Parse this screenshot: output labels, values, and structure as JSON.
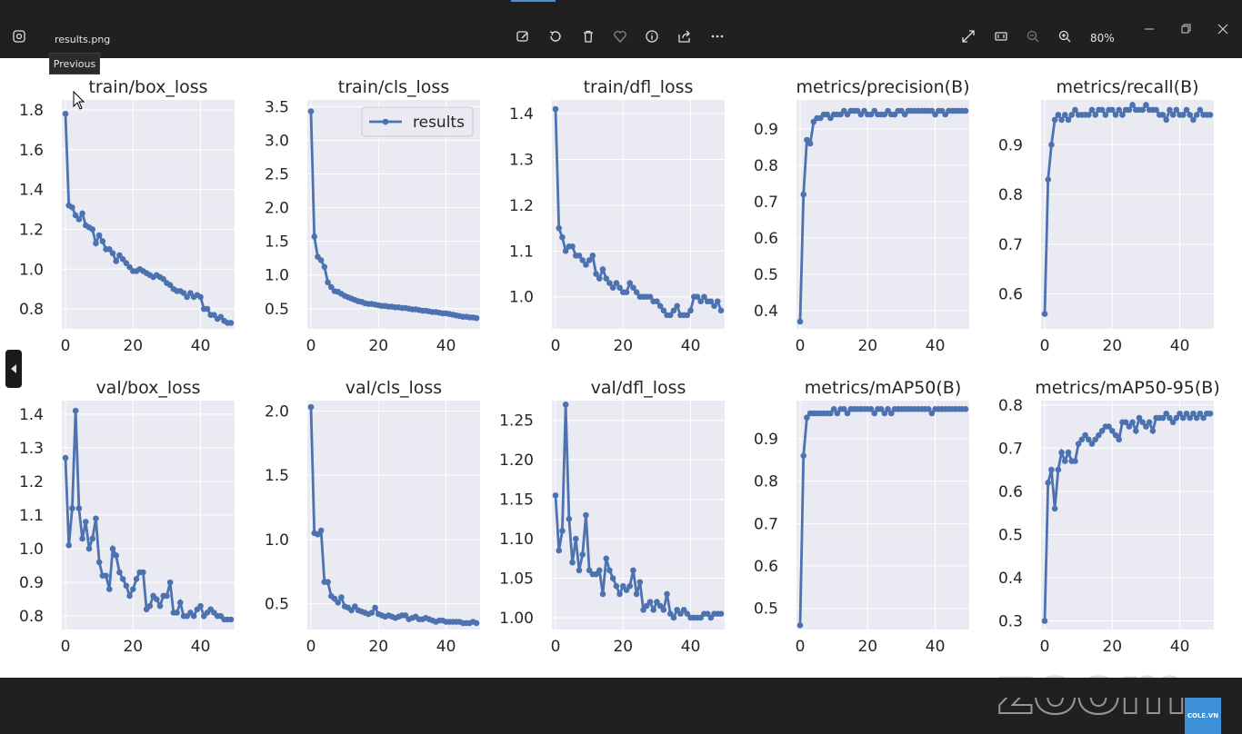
{
  "window": {
    "file_name": "results.png",
    "tooltip": "Previous",
    "zoom_level": "80%"
  },
  "watermark": {
    "text": "zoom",
    "badge": "COLE.VN"
  },
  "chart_data": [
    {
      "type": "line",
      "title": "train/box_loss",
      "xlim": [
        0,
        49
      ],
      "ylim": [
        0.7,
        1.85
      ],
      "yticks": [
        "0.8",
        "1.0",
        "1.2",
        "1.4",
        "1.6",
        "1.8"
      ],
      "ytick_values": [
        0.8,
        1.0,
        1.2,
        1.4,
        1.6,
        1.8
      ],
      "xticks": [
        "0",
        "20",
        "40"
      ],
      "xtick_values": [
        0,
        20,
        40
      ],
      "series": [
        {
          "values": [
            1.78,
            1.32,
            1.31,
            1.27,
            1.25,
            1.28,
            1.22,
            1.21,
            1.2,
            1.13,
            1.17,
            1.14,
            1.1,
            1.1,
            1.08,
            1.04,
            1.07,
            1.05,
            1.03,
            1.01,
            0.99,
            0.99,
            1.0,
            0.99,
            0.98,
            0.97,
            0.96,
            0.97,
            0.96,
            0.95,
            0.93,
            0.92,
            0.9,
            0.89,
            0.89,
            0.88,
            0.86,
            0.88,
            0.86,
            0.87,
            0.86,
            0.8,
            0.8,
            0.77,
            0.77,
            0.75,
            0.76,
            0.74,
            0.73,
            0.73
          ]
        }
      ]
    },
    {
      "type": "line",
      "title": "train/cls_loss",
      "xlim": [
        0,
        49
      ],
      "ylim": [
        0.2,
        3.6
      ],
      "yticks": [
        "0.5",
        "1.0",
        "1.5",
        "2.0",
        "2.5",
        "3.0",
        "3.5"
      ],
      "ytick_values": [
        0.5,
        1.0,
        1.5,
        2.0,
        2.5,
        3.0,
        3.5
      ],
      "xticks": [
        "0",
        "20",
        "40"
      ],
      "xtick_values": [
        0,
        20,
        40
      ],
      "legend": "results",
      "series": [
        {
          "name": "results",
          "values": [
            3.43,
            1.57,
            1.27,
            1.22,
            1.12,
            0.89,
            0.82,
            0.76,
            0.75,
            0.72,
            0.69,
            0.67,
            0.65,
            0.63,
            0.61,
            0.6,
            0.58,
            0.57,
            0.57,
            0.56,
            0.55,
            0.54,
            0.54,
            0.53,
            0.53,
            0.52,
            0.52,
            0.51,
            0.51,
            0.5,
            0.49,
            0.49,
            0.48,
            0.47,
            0.47,
            0.46,
            0.45,
            0.45,
            0.44,
            0.43,
            0.43,
            0.42,
            0.41,
            0.4,
            0.39,
            0.38,
            0.38,
            0.37,
            0.37,
            0.36
          ]
        }
      ]
    },
    {
      "type": "line",
      "title": "train/dfl_loss",
      "xlim": [
        0,
        49
      ],
      "ylim": [
        0.93,
        1.43
      ],
      "yticks": [
        "1.0",
        "1.1",
        "1.2",
        "1.3",
        "1.4"
      ],
      "ytick_values": [
        1.0,
        1.1,
        1.2,
        1.3,
        1.4
      ],
      "xticks": [
        "0",
        "20",
        "40"
      ],
      "xtick_values": [
        0,
        20,
        40
      ],
      "series": [
        {
          "values": [
            1.41,
            1.15,
            1.13,
            1.1,
            1.11,
            1.11,
            1.09,
            1.09,
            1.08,
            1.07,
            1.08,
            1.09,
            1.05,
            1.04,
            1.06,
            1.04,
            1.03,
            1.02,
            1.03,
            1.02,
            1.01,
            1.01,
            1.03,
            1.02,
            1.01,
            1.0,
            1.0,
            1.0,
            1.0,
            0.99,
            0.99,
            0.98,
            0.97,
            0.96,
            0.96,
            0.97,
            0.98,
            0.96,
            0.96,
            0.96,
            0.97,
            1.0,
            1.0,
            0.99,
            1.0,
            0.99,
            0.99,
            0.98,
            0.99,
            0.97
          ]
        }
      ]
    },
    {
      "type": "line",
      "title": "metrics/precision(B)",
      "xlim": [
        0,
        49
      ],
      "ylim": [
        0.35,
        0.98
      ],
      "yticks": [
        "0.4",
        "0.5",
        "0.6",
        "0.7",
        "0.8",
        "0.9"
      ],
      "ytick_values": [
        0.4,
        0.5,
        0.6,
        0.7,
        0.8,
        0.9
      ],
      "xticks": [
        "0",
        "20",
        "40"
      ],
      "xtick_values": [
        0,
        20,
        40
      ],
      "series": [
        {
          "values": [
            0.37,
            0.72,
            0.87,
            0.86,
            0.92,
            0.93,
            0.93,
            0.94,
            0.94,
            0.93,
            0.94,
            0.94,
            0.94,
            0.95,
            0.94,
            0.95,
            0.95,
            0.95,
            0.94,
            0.95,
            0.94,
            0.94,
            0.95,
            0.94,
            0.94,
            0.94,
            0.95,
            0.94,
            0.94,
            0.95,
            0.95,
            0.94,
            0.95,
            0.95,
            0.95,
            0.95,
            0.95,
            0.95,
            0.95,
            0.95,
            0.94,
            0.95,
            0.95,
            0.94,
            0.95,
            0.95,
            0.95,
            0.95,
            0.95,
            0.95
          ]
        }
      ]
    },
    {
      "type": "line",
      "title": "metrics/recall(B)",
      "xlim": [
        0,
        49
      ],
      "ylim": [
        0.53,
        0.99
      ],
      "yticks": [
        "0.6",
        "0.7",
        "0.8",
        "0.9"
      ],
      "ytick_values": [
        0.6,
        0.7,
        0.8,
        0.9
      ],
      "xticks": [
        "0",
        "20",
        "40"
      ],
      "xtick_values": [
        0,
        20,
        40
      ],
      "series": [
        {
          "values": [
            0.56,
            0.83,
            0.9,
            0.95,
            0.96,
            0.95,
            0.96,
            0.95,
            0.96,
            0.97,
            0.96,
            0.96,
            0.96,
            0.96,
            0.97,
            0.96,
            0.97,
            0.97,
            0.96,
            0.97,
            0.97,
            0.96,
            0.97,
            0.96,
            0.97,
            0.97,
            0.98,
            0.97,
            0.97,
            0.97,
            0.98,
            0.97,
            0.97,
            0.97,
            0.96,
            0.96,
            0.95,
            0.97,
            0.96,
            0.97,
            0.96,
            0.96,
            0.97,
            0.96,
            0.95,
            0.96,
            0.97,
            0.96,
            0.96,
            0.96
          ]
        }
      ]
    },
    {
      "type": "line",
      "title": "val/box_loss",
      "xlim": [
        0,
        49
      ],
      "ylim": [
        0.76,
        1.44
      ],
      "yticks": [
        "0.8",
        "0.9",
        "1.0",
        "1.1",
        "1.2",
        "1.3",
        "1.4"
      ],
      "ytick_values": [
        0.8,
        0.9,
        1.0,
        1.1,
        1.2,
        1.3,
        1.4
      ],
      "xticks": [
        "0",
        "20",
        "40"
      ],
      "xtick_values": [
        0,
        20,
        40
      ],
      "series": [
        {
          "values": [
            1.27,
            1.01,
            1.12,
            1.41,
            1.12,
            1.03,
            1.08,
            1.0,
            1.03,
            1.09,
            0.96,
            0.92,
            0.92,
            0.88,
            1.0,
            0.98,
            0.93,
            0.91,
            0.89,
            0.86,
            0.88,
            0.91,
            0.93,
            0.93,
            0.82,
            0.83,
            0.86,
            0.85,
            0.83,
            0.86,
            0.86,
            0.9,
            0.81,
            0.81,
            0.84,
            0.8,
            0.8,
            0.81,
            0.8,
            0.82,
            0.83,
            0.8,
            0.81,
            0.82,
            0.81,
            0.8,
            0.8,
            0.79,
            0.79,
            0.79
          ]
        }
      ]
    },
    {
      "type": "line",
      "title": "val/cls_loss",
      "xlim": [
        0,
        49
      ],
      "ylim": [
        0.3,
        2.08
      ],
      "yticks": [
        "0.5",
        "1.0",
        "1.5",
        "2.0"
      ],
      "ytick_values": [
        0.5,
        1.0,
        1.5,
        2.0
      ],
      "xticks": [
        "0",
        "20",
        "40"
      ],
      "xtick_values": [
        0,
        20,
        40
      ],
      "series": [
        {
          "values": [
            2.03,
            1.05,
            1.04,
            1.07,
            0.67,
            0.67,
            0.56,
            0.54,
            0.51,
            0.55,
            0.48,
            0.47,
            0.45,
            0.48,
            0.45,
            0.44,
            0.43,
            0.42,
            0.43,
            0.47,
            0.42,
            0.41,
            0.4,
            0.41,
            0.4,
            0.39,
            0.4,
            0.41,
            0.41,
            0.38,
            0.39,
            0.4,
            0.38,
            0.38,
            0.39,
            0.38,
            0.37,
            0.36,
            0.37,
            0.37,
            0.36,
            0.36,
            0.36,
            0.36,
            0.36,
            0.35,
            0.35,
            0.35,
            0.36,
            0.35
          ]
        }
      ]
    },
    {
      "type": "line",
      "title": "val/dfl_loss",
      "xlim": [
        0,
        49
      ],
      "ylim": [
        0.985,
        1.275
      ],
      "yticks": [
        "1.00",
        "1.05",
        "1.10",
        "1.15",
        "1.20",
        "1.25"
      ],
      "ytick_values": [
        1.0,
        1.05,
        1.1,
        1.15,
        1.2,
        1.25
      ],
      "xticks": [
        "0",
        "20",
        "40"
      ],
      "xtick_values": [
        0,
        20,
        40
      ],
      "series": [
        {
          "values": [
            1.155,
            1.085,
            1.11,
            1.27,
            1.125,
            1.07,
            1.1,
            1.06,
            1.08,
            1.13,
            1.06,
            1.055,
            1.055,
            1.06,
            1.03,
            1.075,
            1.06,
            1.05,
            1.04,
            1.03,
            1.04,
            1.035,
            1.04,
            1.06,
            1.03,
            1.045,
            1.01,
            1.015,
            1.02,
            1.01,
            1.02,
            1.015,
            1.01,
            1.03,
            1.005,
            1.0,
            1.01,
            1.005,
            1.01,
            1.005,
            1.0,
            1.0,
            1.0,
            1.0,
            1.005,
            1.005,
            1.0,
            1.005,
            1.005,
            1.005
          ]
        }
      ]
    },
    {
      "type": "line",
      "title": "metrics/mAP50(B)",
      "xlim": [
        0,
        49
      ],
      "ylim": [
        0.45,
        0.99
      ],
      "yticks": [
        "0.5",
        "0.6",
        "0.7",
        "0.8",
        "0.9"
      ],
      "ytick_values": [
        0.5,
        0.6,
        0.7,
        0.8,
        0.9
      ],
      "xticks": [
        "0",
        "20",
        "40"
      ],
      "xtick_values": [
        0,
        20,
        40
      ],
      "series": [
        {
          "values": [
            0.46,
            0.86,
            0.95,
            0.96,
            0.96,
            0.96,
            0.96,
            0.96,
            0.96,
            0.96,
            0.97,
            0.96,
            0.97,
            0.97,
            0.96,
            0.97,
            0.97,
            0.97,
            0.97,
            0.97,
            0.97,
            0.97,
            0.96,
            0.97,
            0.97,
            0.96,
            0.97,
            0.96,
            0.97,
            0.97,
            0.97,
            0.97,
            0.97,
            0.97,
            0.97,
            0.97,
            0.97,
            0.97,
            0.97,
            0.96,
            0.97,
            0.97,
            0.97,
            0.97,
            0.97,
            0.97,
            0.97,
            0.97,
            0.97,
            0.97
          ]
        }
      ]
    },
    {
      "type": "line",
      "title": "metrics/mAP50-95(B)",
      "xlim": [
        0,
        49
      ],
      "ylim": [
        0.28,
        0.81
      ],
      "yticks": [
        "0.3",
        "0.4",
        "0.5",
        "0.6",
        "0.7",
        "0.8"
      ],
      "ytick_values": [
        0.3,
        0.4,
        0.5,
        0.6,
        0.7,
        0.8
      ],
      "xticks": [
        "0",
        "20",
        "40"
      ],
      "xtick_values": [
        0,
        20,
        40
      ],
      "series": [
        {
          "values": [
            0.3,
            0.62,
            0.65,
            0.56,
            0.65,
            0.69,
            0.67,
            0.69,
            0.67,
            0.67,
            0.71,
            0.72,
            0.73,
            0.72,
            0.71,
            0.72,
            0.73,
            0.74,
            0.75,
            0.75,
            0.74,
            0.73,
            0.72,
            0.76,
            0.76,
            0.75,
            0.76,
            0.74,
            0.77,
            0.76,
            0.75,
            0.76,
            0.74,
            0.77,
            0.77,
            0.77,
            0.78,
            0.77,
            0.76,
            0.77,
            0.78,
            0.77,
            0.78,
            0.77,
            0.78,
            0.77,
            0.78,
            0.77,
            0.78,
            0.78
          ]
        }
      ]
    }
  ],
  "colors": {
    "line": "#4c72b0",
    "plot_bg": "#eaeaf2",
    "grid": "#ffffff",
    "window_bg": "#202020"
  }
}
